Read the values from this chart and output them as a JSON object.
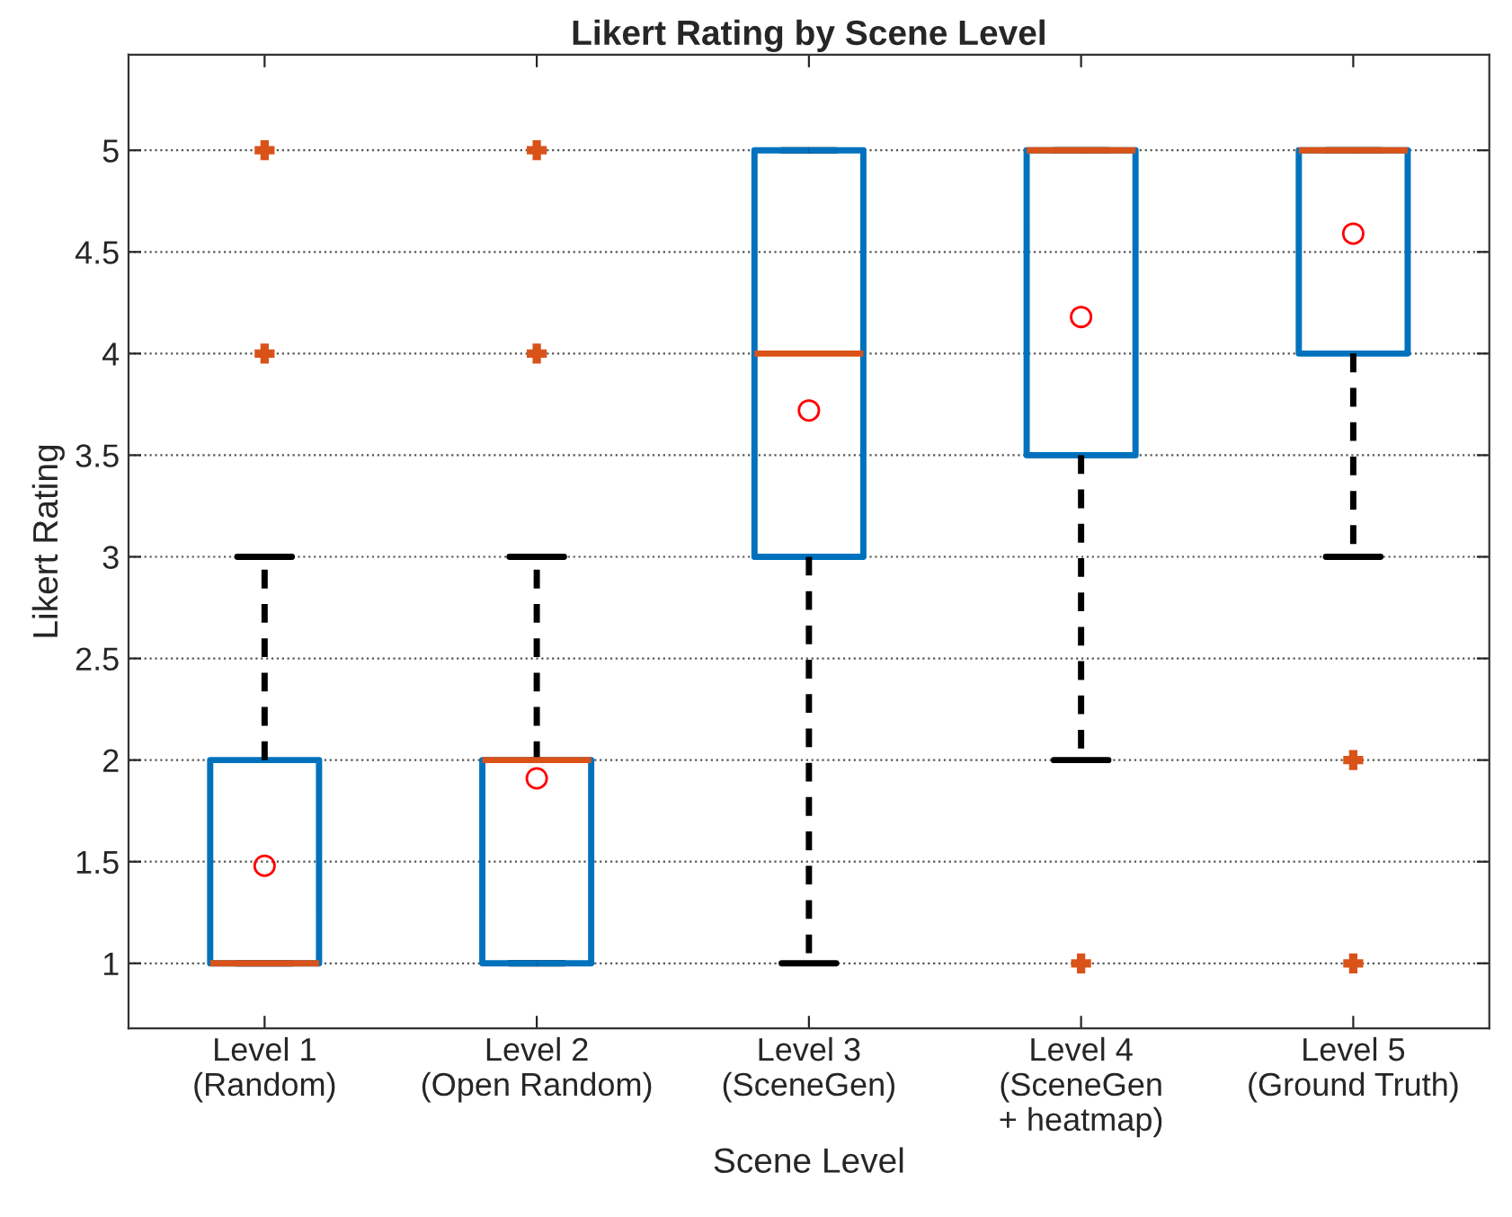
{
  "chart_data": {
    "type": "box",
    "title": "Likert Rating by Scene Level",
    "xlabel": "Scene Level",
    "ylabel": "Likert Rating",
    "categories": [
      "Level 1\n(Random)",
      "Level 2\n(Open Random)",
      "Level 3\n(SceneGen)",
      "Level 4\n(SceneGen\n+ heatmap)",
      "Level 5\n(Ground Truth)"
    ],
    "boxes": [
      {
        "low": 1,
        "q1": 1,
        "median": 1,
        "q3": 2,
        "high": 3,
        "mean": 1.48,
        "outliers": [
          4,
          5
        ]
      },
      {
        "low": 1,
        "q1": 1,
        "median": 2,
        "q3": 2,
        "high": 3,
        "mean": 1.91,
        "outliers": [
          4,
          5
        ]
      },
      {
        "low": 1,
        "q1": 3,
        "median": 4,
        "q3": 5,
        "high": 5,
        "mean": 3.72
      },
      {
        "low": 2,
        "q1": 3.5,
        "median": 5,
        "q3": 5,
        "high": 5,
        "mean": 4.18,
        "outliers": [
          1
        ]
      },
      {
        "low": 3,
        "q1": 4,
        "median": 5,
        "q3": 5,
        "high": 5,
        "mean": 4.59,
        "outliers": [
          1,
          2
        ]
      }
    ],
    "color": "#0072bd",
    "ylim": [
      0.68,
      5.47
    ],
    "yticks": [
      1,
      1.5,
      2,
      2.5,
      3,
      3.5,
      4,
      4.5,
      5
    ],
    "grid": "y"
  }
}
